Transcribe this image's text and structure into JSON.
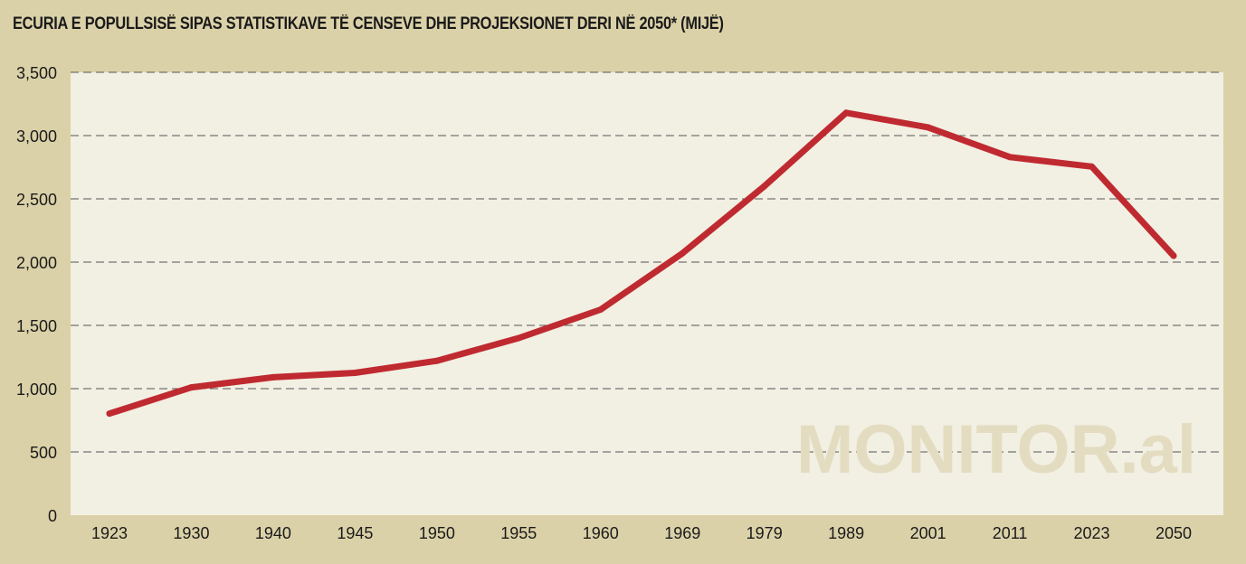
{
  "title": "ECURIA E POPULLSISË SIPAS STATISTIKAVE TË CENSEVE DHE PROJEKSIONET DERI NË 2050* (MIJË)",
  "watermark": "MONITOR.al",
  "colors": {
    "background": "#dbd1a8",
    "plot_background": "#f2efe3",
    "line": "#bf2a30",
    "gridline": "#555555",
    "watermark": "#e3dcc0"
  },
  "chart_data": {
    "type": "line",
    "categories": [
      "1923",
      "1930",
      "1940",
      "1945",
      "1950",
      "1955",
      "1960",
      "1969",
      "1979",
      "1989",
      "2001",
      "2011",
      "2023",
      "2050"
    ],
    "values": [
      803,
      1010,
      1090,
      1125,
      1220,
      1400,
      1625,
      2070,
      2600,
      3180,
      3065,
      2830,
      2755,
      2050
    ],
    "ylim": [
      0,
      3500
    ],
    "yticks": [
      0,
      500,
      1000,
      1500,
      2000,
      2500,
      3000,
      3500
    ],
    "ytick_labels": [
      "0",
      "500",
      "1,000",
      "1,500",
      "2,000",
      "2,500",
      "3,000",
      "3,500"
    ],
    "grid": "horizontal dashed",
    "legend": "none"
  }
}
